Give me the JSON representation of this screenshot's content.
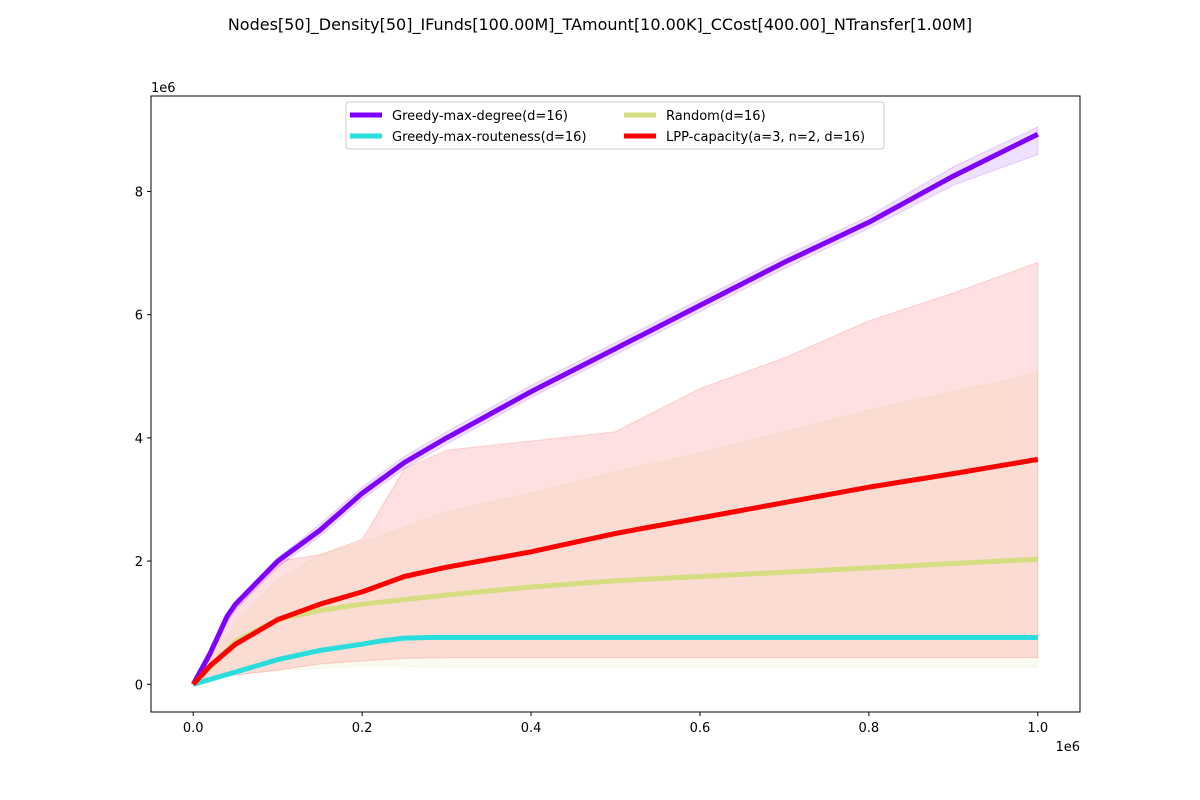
{
  "chart_data": {
    "type": "line",
    "title": "Nodes[50]_Density[50]_IFunds[100.00M]_TAmount[10.00K]_CCost[400.00]_NTransfer[1.00M]",
    "xlabel": "",
    "ylabel": "",
    "x_offset_label": "1e6",
    "y_offset_label": "1e6",
    "xlim": [
      -50000,
      1050000
    ],
    "ylim": [
      -450000,
      9550000
    ],
    "x_ticks": [
      0,
      200000,
      400000,
      600000,
      800000,
      1000000
    ],
    "x_tick_labels": [
      "0.0",
      "0.2",
      "0.4",
      "0.6",
      "0.8",
      "1.0"
    ],
    "y_ticks": [
      0,
      2000000,
      4000000,
      6000000,
      8000000
    ],
    "y_tick_labels": [
      "0",
      "2",
      "4",
      "6",
      "8"
    ],
    "grid": false,
    "legend_position": "top-center",
    "legend_columns": 2,
    "series": [
      {
        "name": "Greedy-max-degree(d=16)",
        "color": "#8000ff",
        "x": [
          0,
          20000,
          40000,
          50000,
          100000,
          150000,
          200000,
          250000,
          300000,
          400000,
          500000,
          600000,
          700000,
          800000,
          900000,
          1000000
        ],
        "values": [
          0,
          500000,
          1100000,
          1300000,
          2000000,
          2500000,
          3100000,
          3600000,
          4000000,
          4750000,
          5450000,
          6150000,
          6850000,
          7500000,
          8250000,
          8930000
        ],
        "band_lower": [
          0,
          450000,
          1000000,
          1200000,
          1900000,
          2400000,
          3000000,
          3500000,
          3900000,
          4650000,
          5350000,
          6050000,
          6750000,
          7400000,
          8100000,
          8600000
        ],
        "band_upper": [
          0,
          550000,
          1150000,
          1350000,
          2050000,
          2600000,
          3200000,
          3700000,
          4100000,
          4850000,
          5550000,
          6250000,
          6950000,
          7600000,
          8400000,
          9050000
        ]
      },
      {
        "name": "Greedy-max-routeness(d=16)",
        "color": "#2adddd",
        "x": [
          0,
          50000,
          100000,
          150000,
          200000,
          220000,
          250000,
          280000,
          300000,
          400000,
          500000,
          600000,
          700000,
          800000,
          900000,
          1000000
        ],
        "values": [
          0,
          200000,
          400000,
          550000,
          650000,
          700000,
          750000,
          760000,
          760000,
          760000,
          760000,
          760000,
          760000,
          760000,
          760000,
          760000
        ],
        "band_lower": [
          0,
          180000,
          380000,
          520000,
          620000,
          680000,
          730000,
          740000,
          740000,
          740000,
          740000,
          740000,
          740000,
          740000,
          740000,
          740000
        ],
        "band_upper": [
          0,
          220000,
          420000,
          580000,
          680000,
          720000,
          770000,
          780000,
          780000,
          780000,
          780000,
          780000,
          780000,
          780000,
          780000,
          780000
        ]
      },
      {
        "name": "Random(d=16)",
        "color": "#d4dd80",
        "x": [
          0,
          50000,
          100000,
          150000,
          200000,
          300000,
          400000,
          500000,
          600000,
          700000,
          800000,
          900000,
          1000000
        ],
        "values": [
          0,
          700000,
          1050000,
          1200000,
          1300000,
          1450000,
          1580000,
          1680000,
          1750000,
          1820000,
          1890000,
          1960000,
          2030000
        ],
        "band_lower": [
          0,
          150000,
          220000,
          260000,
          300000,
          280000,
          280000,
          280000,
          280000,
          280000,
          280000,
          280000,
          280000
        ],
        "band_upper": [
          0,
          1000000,
          1700000,
          2100000,
          2300000,
          2800000,
          3100000,
          3450000,
          3750000,
          4100000,
          4450000,
          4750000,
          5050000
        ]
      },
      {
        "name": "LPP-capacity(a=3, n=2, d=16)",
        "color": "#ff0000",
        "x": [
          0,
          20000,
          50000,
          100000,
          150000,
          200000,
          250000,
          300000,
          400000,
          500000,
          600000,
          700000,
          800000,
          900000,
          1000000
        ],
        "values": [
          0,
          300000,
          650000,
          1050000,
          1300000,
          1500000,
          1750000,
          1900000,
          2150000,
          2450000,
          2700000,
          2950000,
          3200000,
          3420000,
          3650000
        ],
        "band_lower": [
          0,
          100000,
          150000,
          230000,
          330000,
          380000,
          420000,
          430000,
          430000,
          430000,
          430000,
          430000,
          430000,
          430000,
          430000
        ],
        "band_upper": [
          0,
          600000,
          1300000,
          2000000,
          2100000,
          2350000,
          3500000,
          3800000,
          3950000,
          4100000,
          4800000,
          5300000,
          5900000,
          6350000,
          6850000
        ]
      }
    ]
  }
}
